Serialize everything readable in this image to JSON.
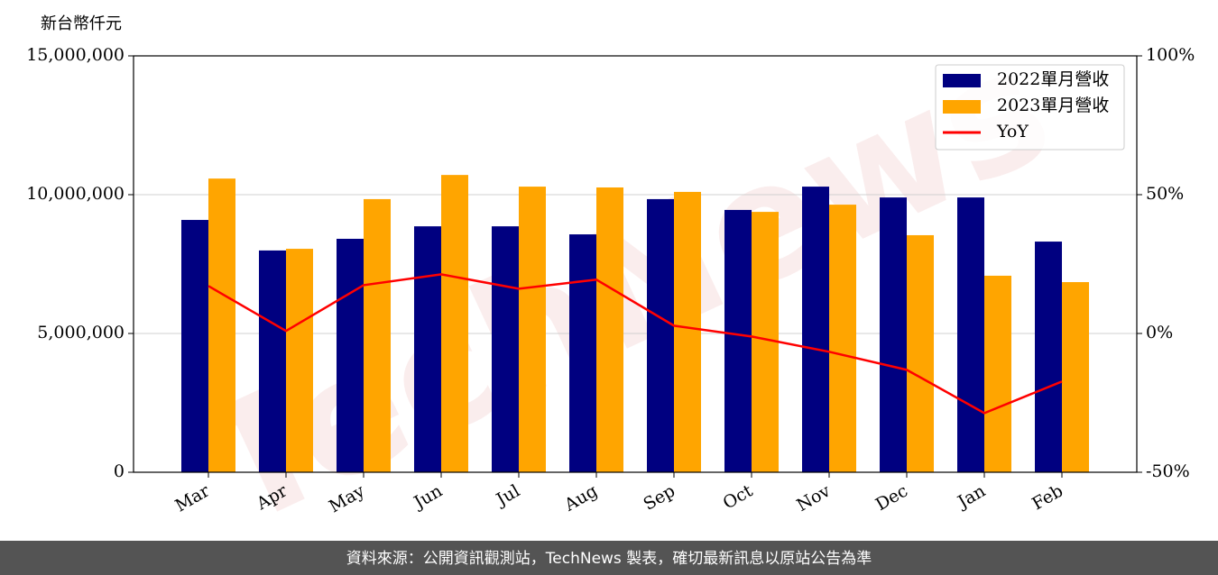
{
  "chart_data": {
    "type": "bar_line",
    "y_label": "新台幣仟元",
    "watermark": "TechNews",
    "footer": "資料來源：公開資訊觀測站，TechNews 製表，確切最新訊息以原站公告為準",
    "categories": [
      "Mar",
      "Apr",
      "May",
      "Jun",
      "Jul",
      "Aug",
      "Sep",
      "Oct",
      "Nov",
      "Dec",
      "Jan",
      "Feb"
    ],
    "series": [
      {
        "name": "2022單月營收",
        "color": "#000080",
        "type": "bar",
        "values": [
          9090000,
          7990000,
          8410000,
          8860000,
          8860000,
          8570000,
          9840000,
          9450000,
          10290000,
          9900000,
          9900000,
          8310000
        ]
      },
      {
        "name": "2023單月營收",
        "color": "#ffa500",
        "type": "bar",
        "values": [
          10580000,
          8050000,
          9840000,
          10710000,
          10290000,
          10260000,
          10100000,
          9380000,
          9640000,
          8540000,
          7080000,
          6850000
        ]
      },
      {
        "name": "YoY",
        "color": "#ff0000",
        "type": "line",
        "axis": "y2",
        "values": [
          17.1,
          0.9,
          17.4,
          21.3,
          16.1,
          19.4,
          2.8,
          -1.1,
          -6.6,
          -13.1,
          -28.7,
          -17.3
        ]
      }
    ],
    "ylim": [
      0,
      15000000
    ],
    "yticks": [
      0,
      {
        "value": 5000000,
        "label": "5,000,000"
      },
      {
        "value": 10000000,
        "label": "10,000,000"
      },
      {
        "value": 15000000,
        "label": "15,000,000"
      }
    ],
    "y2lim": [
      -50,
      100
    ],
    "y2ticks": [
      {
        "value": -50,
        "label": "-50%"
      },
      {
        "value": 0,
        "label": "0%"
      },
      {
        "value": 50,
        "label": "50%"
      },
      {
        "value": 100,
        "label": "100%"
      }
    ],
    "grid": true,
    "legend": "upper right"
  }
}
